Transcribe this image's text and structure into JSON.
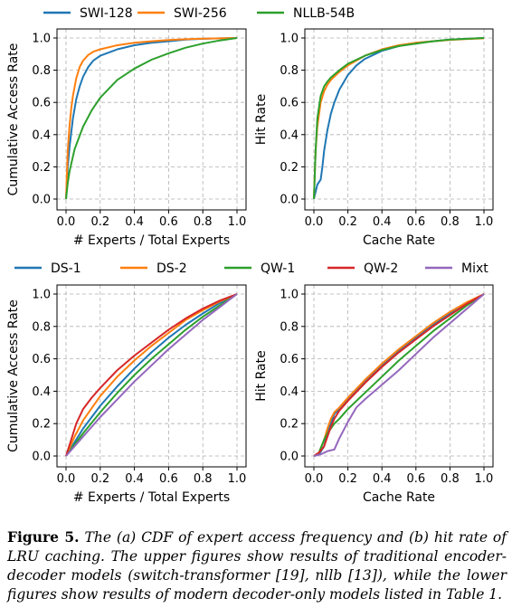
{
  "legends": [
    [
      "SWI-128",
      "SWI-256",
      "NLLB-54B"
    ],
    [
      "DS-1",
      "DS-2",
      "QW-1",
      "QW-2",
      "Mixt"
    ]
  ],
  "colors": {
    "SWI-128": "#1f77b4",
    "SWI-256": "#ff7f0e",
    "NLLB-54B": "#2ca02c",
    "DS-1": "#1f77b4",
    "DS-2": "#ff7f0e",
    "QW-1": "#2ca02c",
    "QW-2": "#d62728",
    "Mixt": "#9467bd"
  },
  "chart_data": [
    {
      "type": "line",
      "xlabel": "# Experts / Total Experts",
      "ylabel": "Cumulative Access Rate",
      "xlim": [
        0,
        1
      ],
      "ylim": [
        0,
        1
      ],
      "xticks": [
        "0.0",
        "0.2",
        "0.4",
        "0.6",
        "0.8",
        "1.0"
      ],
      "yticks": [
        "0.0",
        "0.2",
        "0.4",
        "0.6",
        "0.8",
        "1.0"
      ],
      "grid": true,
      "series": [
        {
          "name": "SWI-128",
          "x": [
            0,
            0.01,
            0.02,
            0.04,
            0.06,
            0.08,
            0.1,
            0.13,
            0.16,
            0.2,
            0.3,
            0.4,
            0.5,
            0.6,
            0.7,
            0.8,
            0.9,
            1.0
          ],
          "y": [
            0,
            0.2,
            0.32,
            0.5,
            0.62,
            0.7,
            0.76,
            0.82,
            0.86,
            0.89,
            0.93,
            0.955,
            0.97,
            0.98,
            0.99,
            0.995,
            0.998,
            1.0
          ]
        },
        {
          "name": "SWI-256",
          "x": [
            0,
            0.01,
            0.02,
            0.03,
            0.04,
            0.06,
            0.08,
            0.1,
            0.13,
            0.16,
            0.2,
            0.3,
            0.4,
            0.5,
            0.6,
            0.7,
            0.8,
            0.9,
            1.0
          ],
          "y": [
            0,
            0.3,
            0.45,
            0.56,
            0.64,
            0.75,
            0.82,
            0.86,
            0.895,
            0.915,
            0.93,
            0.955,
            0.97,
            0.98,
            0.987,
            0.992,
            0.996,
            0.998,
            1.0
          ]
        },
        {
          "name": "NLLB-54B",
          "x": [
            0,
            0.01,
            0.02,
            0.05,
            0.1,
            0.15,
            0.2,
            0.3,
            0.4,
            0.5,
            0.6,
            0.7,
            0.8,
            0.9,
            1.0
          ],
          "y": [
            0,
            0.1,
            0.17,
            0.31,
            0.45,
            0.55,
            0.63,
            0.74,
            0.81,
            0.865,
            0.905,
            0.94,
            0.965,
            0.985,
            1.0
          ]
        }
      ]
    },
    {
      "type": "line",
      "xlabel": "Cache Rate",
      "ylabel": "Hit Rate",
      "xlim": [
        0,
        1
      ],
      "ylim": [
        0,
        1
      ],
      "xticks": [
        "0.0",
        "0.2",
        "0.4",
        "0.6",
        "0.8",
        "1.0"
      ],
      "yticks": [
        "0.0",
        "0.2",
        "0.4",
        "0.6",
        "0.8",
        "1.0"
      ],
      "grid": true,
      "series": [
        {
          "name": "SWI-128",
          "x": [
            0,
            0.02,
            0.04,
            0.05,
            0.06,
            0.08,
            0.1,
            0.12,
            0.15,
            0.2,
            0.25,
            0.3,
            0.4,
            0.5,
            0.6,
            0.7,
            0.8,
            0.9,
            1.0
          ],
          "y": [
            0,
            0.09,
            0.12,
            0.2,
            0.3,
            0.43,
            0.53,
            0.6,
            0.68,
            0.77,
            0.83,
            0.87,
            0.92,
            0.95,
            0.97,
            0.98,
            0.99,
            0.995,
            1.0
          ]
        },
        {
          "name": "SWI-256",
          "x": [
            0,
            0.01,
            0.02,
            0.04,
            0.06,
            0.08,
            0.1,
            0.15,
            0.2,
            0.3,
            0.4,
            0.5,
            0.6,
            0.7,
            0.8,
            0.9,
            1.0
          ],
          "y": [
            0,
            0.3,
            0.45,
            0.6,
            0.67,
            0.71,
            0.74,
            0.79,
            0.83,
            0.89,
            0.93,
            0.955,
            0.97,
            0.98,
            0.988,
            0.994,
            0.998
          ]
        },
        {
          "name": "NLLB-54B",
          "x": [
            0,
            0.01,
            0.02,
            0.04,
            0.06,
            0.08,
            0.1,
            0.15,
            0.2,
            0.3,
            0.4,
            0.5,
            0.6,
            0.7,
            0.8,
            0.9,
            1.0
          ],
          "y": [
            0,
            0.3,
            0.5,
            0.64,
            0.7,
            0.73,
            0.755,
            0.8,
            0.84,
            0.89,
            0.925,
            0.95,
            0.965,
            0.98,
            0.99,
            0.995,
            1.0
          ]
        }
      ]
    },
    {
      "type": "line",
      "xlabel": "# Experts / Total Experts",
      "ylabel": "Cumulative Access Rate",
      "xlim": [
        0,
        1
      ],
      "ylim": [
        0,
        1
      ],
      "xticks": [
        "0.0",
        "0.2",
        "0.4",
        "0.6",
        "0.8",
        "1.0"
      ],
      "yticks": [
        "0.0",
        "0.2",
        "0.4",
        "0.6",
        "0.8",
        "1.0"
      ],
      "grid": true,
      "series": [
        {
          "name": "DS-1",
          "x": [
            0,
            0.1,
            0.2,
            0.3,
            0.4,
            0.5,
            0.6,
            0.7,
            0.8,
            0.9,
            1.0
          ],
          "y": [
            0,
            0.17,
            0.31,
            0.43,
            0.54,
            0.64,
            0.73,
            0.81,
            0.88,
            0.945,
            1.0
          ]
        },
        {
          "name": "DS-2",
          "x": [
            0,
            0.05,
            0.1,
            0.2,
            0.3,
            0.4,
            0.5,
            0.6,
            0.7,
            0.8,
            0.9,
            1.0
          ],
          "y": [
            0,
            0.12,
            0.22,
            0.37,
            0.49,
            0.59,
            0.68,
            0.76,
            0.84,
            0.9,
            0.955,
            1.0
          ]
        },
        {
          "name": "QW-1",
          "x": [
            0,
            0.1,
            0.2,
            0.3,
            0.4,
            0.5,
            0.6,
            0.7,
            0.8,
            0.9,
            1.0
          ],
          "y": [
            0,
            0.14,
            0.27,
            0.39,
            0.5,
            0.6,
            0.69,
            0.78,
            0.86,
            0.93,
            1.0
          ]
        },
        {
          "name": "QW-2",
          "x": [
            0,
            0.03,
            0.06,
            0.1,
            0.15,
            0.2,
            0.3,
            0.4,
            0.5,
            0.6,
            0.7,
            0.8,
            0.9,
            1.0
          ],
          "y": [
            0,
            0.1,
            0.2,
            0.29,
            0.36,
            0.42,
            0.53,
            0.62,
            0.7,
            0.78,
            0.85,
            0.91,
            0.96,
            1.0
          ]
        },
        {
          "name": "Mixt",
          "x": [
            0,
            0.1,
            0.2,
            0.3,
            0.4,
            0.5,
            0.6,
            0.7,
            0.8,
            0.9,
            1.0
          ],
          "y": [
            0,
            0.12,
            0.24,
            0.35,
            0.46,
            0.56,
            0.66,
            0.75,
            0.84,
            0.92,
            1.0
          ]
        }
      ]
    },
    {
      "type": "line",
      "xlabel": "Cache Rate",
      "ylabel": "Hit Rate",
      "xlim": [
        0,
        1
      ],
      "ylim": [
        0,
        1
      ],
      "xticks": [
        "0.0",
        "0.2",
        "0.4",
        "0.6",
        "0.8",
        "1.0"
      ],
      "yticks": [
        "0.0",
        "0.2",
        "0.4",
        "0.6",
        "0.8",
        "1.0"
      ],
      "grid": true,
      "series": [
        {
          "name": "DS-1",
          "x": [
            0,
            0.03,
            0.06,
            0.08,
            0.1,
            0.12,
            0.15,
            0.2,
            0.3,
            0.4,
            0.5,
            0.6,
            0.7,
            0.8,
            0.9,
            1.0
          ],
          "y": [
            0,
            0.01,
            0.06,
            0.14,
            0.2,
            0.26,
            0.29,
            0.35,
            0.46,
            0.56,
            0.65,
            0.73,
            0.81,
            0.88,
            0.94,
            1.0
          ]
        },
        {
          "name": "DS-2",
          "x": [
            0,
            0.03,
            0.06,
            0.08,
            0.1,
            0.12,
            0.15,
            0.2,
            0.3,
            0.4,
            0.5,
            0.6,
            0.7,
            0.8,
            0.9,
            1.0
          ],
          "y": [
            0,
            0.02,
            0.1,
            0.17,
            0.23,
            0.27,
            0.3,
            0.36,
            0.47,
            0.57,
            0.66,
            0.74,
            0.82,
            0.89,
            0.95,
            1.0
          ]
        },
        {
          "name": "QW-1",
          "x": [
            0,
            0.03,
            0.06,
            0.08,
            0.1,
            0.12,
            0.15,
            0.2,
            0.3,
            0.4,
            0.5,
            0.6,
            0.7,
            0.8,
            0.9,
            1.0
          ],
          "y": [
            0,
            0.02,
            0.1,
            0.14,
            0.17,
            0.2,
            0.23,
            0.29,
            0.39,
            0.49,
            0.59,
            0.68,
            0.77,
            0.85,
            0.93,
            1.0
          ]
        },
        {
          "name": "QW-2",
          "x": [
            0,
            0.03,
            0.06,
            0.08,
            0.1,
            0.12,
            0.15,
            0.2,
            0.3,
            0.4,
            0.5,
            0.6,
            0.7,
            0.8,
            0.9,
            1.0
          ],
          "y": [
            0,
            0.02,
            0.06,
            0.12,
            0.18,
            0.23,
            0.28,
            0.34,
            0.45,
            0.55,
            0.64,
            0.72,
            0.8,
            0.87,
            0.94,
            1.0
          ]
        },
        {
          "name": "Mixt",
          "x": [
            0,
            0.04,
            0.08,
            0.12,
            0.15,
            0.2,
            0.25,
            0.3,
            0.4,
            0.5,
            0.6,
            0.7,
            0.8,
            0.9,
            1.0
          ],
          "y": [
            0,
            0.01,
            0.03,
            0.04,
            0.11,
            0.21,
            0.3,
            0.35,
            0.44,
            0.53,
            0.63,
            0.73,
            0.82,
            0.91,
            1.0
          ]
        }
      ]
    }
  ],
  "caption": {
    "label": "Figure 5.",
    "text": "The (a) CDF of expert access frequency and (b) hit rate of LRU caching. The upper figures show results of traditional encoder-decoder models (switch-transformer [19], nllb [13]), while the lower figures show results of modern decoder-only models listed in Table 1."
  }
}
